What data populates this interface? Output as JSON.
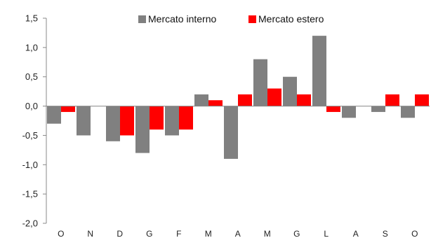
{
  "chart_data": {
    "type": "bar",
    "categories": [
      "O",
      "N",
      "D",
      "G",
      "F",
      "M",
      "A",
      "M",
      "G",
      "L",
      "A",
      "S",
      "O"
    ],
    "series": [
      {
        "name": "Mercato interno",
        "color": "#808080",
        "values": [
          -0.3,
          -0.5,
          -0.6,
          -0.8,
          -0.5,
          0.2,
          -0.9,
          0.8,
          0.5,
          1.2,
          -0.2,
          -0.1,
          -0.2
        ]
      },
      {
        "name": "Mercato estero",
        "color": "#ff0000",
        "values": [
          -0.1,
          0.0,
          -0.5,
          -0.4,
          -0.4,
          0.1,
          0.2,
          0.3,
          0.2,
          -0.1,
          0.0,
          0.2,
          0.2
        ]
      }
    ],
    "ylim": [
      -2.0,
      1.5
    ],
    "yticks": [
      1.5,
      1.0,
      0.5,
      0.0,
      -0.5,
      -1.0,
      -1.5,
      -2.0
    ],
    "ytick_labels": [
      "1,5",
      "1,0",
      "0,5",
      "0,0",
      "-0,5",
      "-1,0",
      "-1,5",
      "-2,0"
    ],
    "legend_position": "top-center",
    "grid": false,
    "title": "",
    "xlabel": "",
    "ylabel": ""
  }
}
